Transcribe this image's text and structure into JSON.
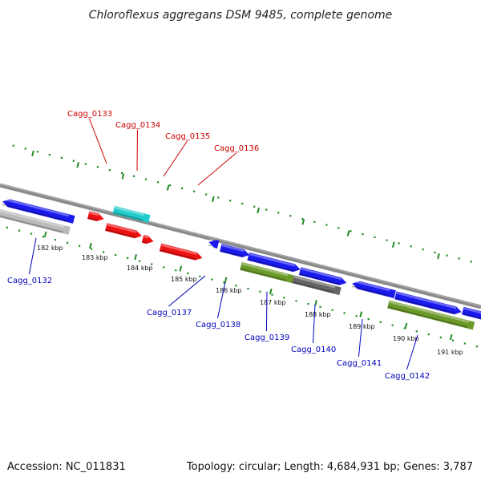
{
  "title": "Chloroflexus aggregans DSM 9485, complete genome",
  "accession": "Accession: NC_011831",
  "topology": "Topology: circular; Length: 4,684,931 bp; Genes: 3,787",
  "colors": {
    "backbone": "#8a8a8a",
    "ruler": "#228b22",
    "label_upper": "#cc0000",
    "label_lower": "#0000bb",
    "gene_blue": "#1a1aee",
    "gene_red": "#ee1111",
    "gene_cyan": "#22cccc",
    "gene_olive": "#6b9a2a",
    "gene_gray": "#666666",
    "gene_lightgray": "#bbbbbb"
  },
  "kbp_ticks": [
    {
      "label": "182 kbp"
    },
    {
      "label": "183 kbp"
    },
    {
      "label": "184 kbp"
    },
    {
      "label": "185 kbp"
    },
    {
      "label": "186 kbp"
    },
    {
      "label": "187 kbp"
    },
    {
      "label": "188 kbp"
    },
    {
      "label": "189 kbp"
    },
    {
      "label": "190 kbp"
    },
    {
      "label": "191 kbp"
    }
  ],
  "gene_labels_upper": [
    "Cagg_0133",
    "Cagg_0134",
    "Cagg_0135",
    "Cagg_0136"
  ],
  "gene_labels_lower": [
    "Cagg_0132",
    "Cagg_0137",
    "Cagg_0138",
    "Cagg_0139",
    "Cagg_0140",
    "Cagg_0141",
    "Cagg_0142"
  ]
}
